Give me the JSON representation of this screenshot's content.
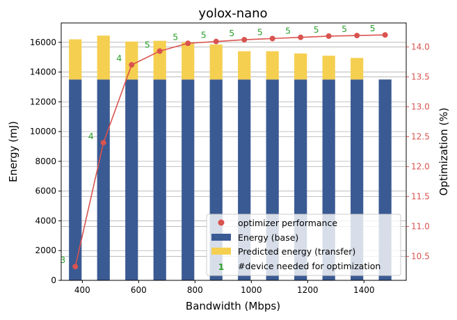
{
  "chart_data": {
    "type": "bar",
    "title": "yolox-nano",
    "xlabel": "Bandwidth (Mbps)",
    "ylabel": "Energy (mJ)",
    "y2label": "Optimization (%)",
    "xlim": [
      325,
      1550
    ],
    "ylim": [
      0,
      17300
    ],
    "y2lim": [
      10.1,
      14.4
    ],
    "x_ticks": [
      400,
      600,
      800,
      1000,
      1200,
      1400
    ],
    "y_ticks": [
      0,
      2000,
      4000,
      6000,
      8000,
      10000,
      12000,
      14000,
      16000
    ],
    "y2_ticks": [
      10.5,
      11.0,
      11.5,
      12.0,
      12.5,
      13.0,
      13.5,
      14.0
    ],
    "x": [
      375,
      475,
      575,
      675,
      775,
      875,
      975,
      1075,
      1175,
      1275,
      1375,
      1475
    ],
    "series": [
      {
        "name": "Energy (base)",
        "kind": "bar",
        "values": [
          13500,
          13500,
          13500,
          13500,
          13500,
          13500,
          13500,
          13500,
          13500,
          13500,
          13500,
          13500
        ]
      },
      {
        "name": "Predicted energy (transfer)",
        "kind": "bar-stacked-top",
        "values": [
          16200,
          16450,
          16050,
          16100,
          16000,
          15850,
          15400,
          15400,
          15250,
          15100,
          14950,
          13500
        ]
      },
      {
        "name": "optimizer performance",
        "kind": "line",
        "axis": "right",
        "values": [
          10.33,
          12.4,
          13.7,
          13.93,
          14.06,
          14.09,
          14.12,
          14.14,
          14.16,
          14.18,
          14.19,
          14.2
        ]
      }
    ],
    "device_labels": [
      "3",
      "4",
      "4",
      "5",
      "5",
      "5",
      "5",
      "5",
      "5",
      "5",
      "5",
      "5"
    ],
    "legend": {
      "placement": "lower-right",
      "entries": [
        "optimizer performance",
        "Energy (base)",
        "Predicted energy (transfer)",
        "#device needed for optimization"
      ],
      "marker_glyph": "1"
    },
    "grid": "horizontal",
    "colors": {
      "base": "#3a5a93",
      "transfer": "#f5cf50",
      "line": "#d9534f",
      "annotation": "#2ca02c",
      "right_axis": "#d9534f",
      "grid": "#b0b0b0"
    }
  }
}
